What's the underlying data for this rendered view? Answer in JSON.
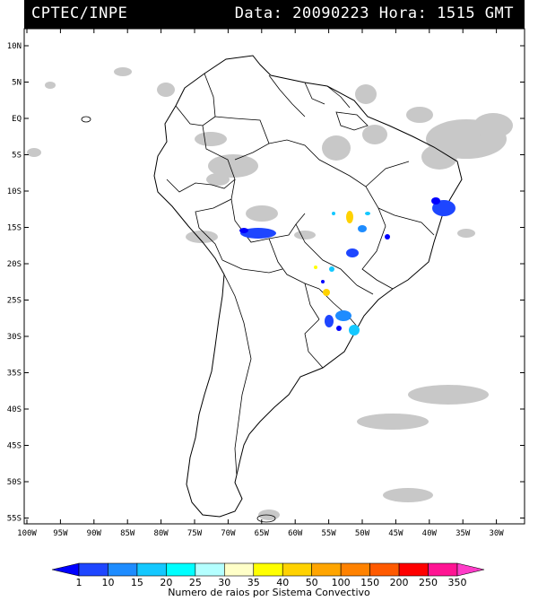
{
  "header": {
    "source": "CPTEC/INPE",
    "datetime": "Data: 20090223 Hora: 1515 GMT"
  },
  "lat_ticks": [
    "10N",
    "5N",
    "EQ",
    "5S",
    "10S",
    "15S",
    "20S",
    "25S",
    "30S",
    "35S",
    "40S",
    "45S",
    "50S",
    "55S"
  ],
  "lon_ticks": [
    "100W",
    "95W",
    "90W",
    "85W",
    "80W",
    "75W",
    "70W",
    "65W",
    "60W",
    "55W",
    "50W",
    "45W",
    "40W",
    "35W",
    "30W"
  ],
  "legend": {
    "title": "Numero de raios por Sistema Convectivo",
    "labels": [
      "1",
      "10",
      "15",
      "20",
      "25",
      "30",
      "35",
      "40",
      "50",
      "100",
      "150",
      "200",
      "250",
      "350"
    ],
    "colors": [
      "#0000ff",
      "#1e46ff",
      "#1e8cff",
      "#14c8ff",
      "#00ffff",
      "#b4ffff",
      "#ffffc8",
      "#ffff00",
      "#ffd200",
      "#ffa500",
      "#ff8200",
      "#ff5a00",
      "#ff0000",
      "#ff1493",
      "#ff3cc8"
    ]
  },
  "colors": {
    "cloud": "#c8c8c8",
    "border": "#000000"
  }
}
